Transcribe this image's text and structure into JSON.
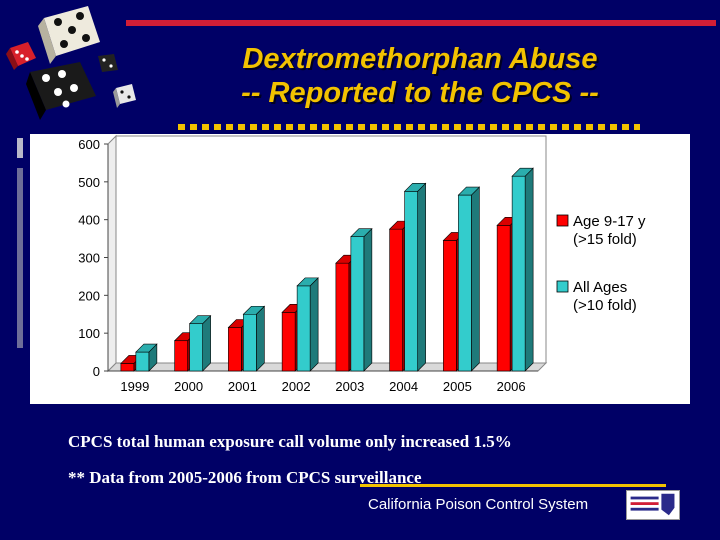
{
  "slide": {
    "title_line1": "Dextromethorphan Abuse",
    "title_line2": "-- Reported to the CPCS --",
    "note1": "CPCS total human exposure call volume only increased 1.5%",
    "note2": "** Data from 2005-2006 from CPCS surveillance",
    "footer": "California Poison Control System",
    "logo_icon": "california-poison-control-logo",
    "decoration_icon": "dice-cluster-icon",
    "colors": {
      "background": "#000066",
      "title": "#f2c200",
      "accent_red": "#d21e36"
    }
  },
  "chart_data": {
    "type": "bar",
    "categories": [
      "1999",
      "2000",
      "2001",
      "2002",
      "2003",
      "2004",
      "2005",
      "2006"
    ],
    "series": [
      {
        "name": "Age 9-17 y",
        "sub_label": "(>15 fold)",
        "color": "#ff0000",
        "values": [
          20,
          80,
          115,
          155,
          285,
          375,
          345,
          385
        ]
      },
      {
        "name": "All Ages",
        "sub_label": "(>10 fold)",
        "color": "#33cccc",
        "values": [
          50,
          125,
          150,
          225,
          355,
          475,
          465,
          515
        ]
      }
    ],
    "yticks": [
      0,
      100,
      200,
      300,
      400,
      500,
      600
    ],
    "ylim": [
      0,
      600
    ],
    "title": "",
    "xlabel": "",
    "ylabel": "",
    "grid": false,
    "legend_position": "right",
    "style": "3d-bar"
  }
}
